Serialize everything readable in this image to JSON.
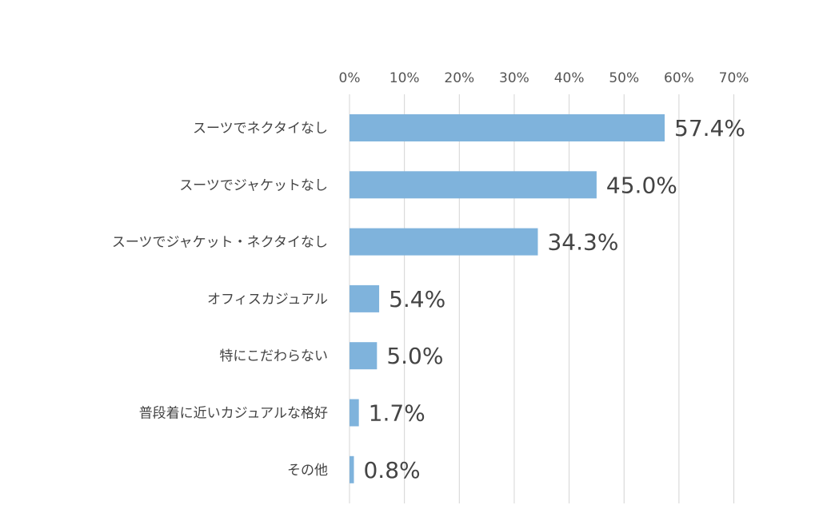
{
  "chart_data": {
    "type": "bar",
    "orientation": "horizontal",
    "categories": [
      "スーツでネクタイなし",
      "スーツでジャケットなし",
      "スーツでジャケット・ネクタイなし",
      "オフィスカジュアル",
      "特にこだわらない",
      "普段着に近いカジュアルな格好",
      "その他"
    ],
    "values": [
      57.4,
      45.0,
      34.3,
      5.4,
      5.0,
      1.7,
      0.8
    ],
    "value_labels": [
      "57.4%",
      "45.0%",
      "34.3%",
      "5.4%",
      "5.0%",
      "1.7%",
      "0.8%"
    ],
    "xlim": [
      0,
      70
    ],
    "ticks": [
      0,
      10,
      20,
      30,
      40,
      50,
      60,
      70
    ],
    "tick_labels": [
      "0%",
      "10%",
      "20%",
      "30%",
      "40%",
      "50%",
      "60%",
      "70%"
    ],
    "tick_position": "top",
    "grid": true,
    "bar_color": "#7fb3dc",
    "grid_color": "#d4d4d4",
    "title": "",
    "xlabel": "",
    "ylabel": ""
  }
}
